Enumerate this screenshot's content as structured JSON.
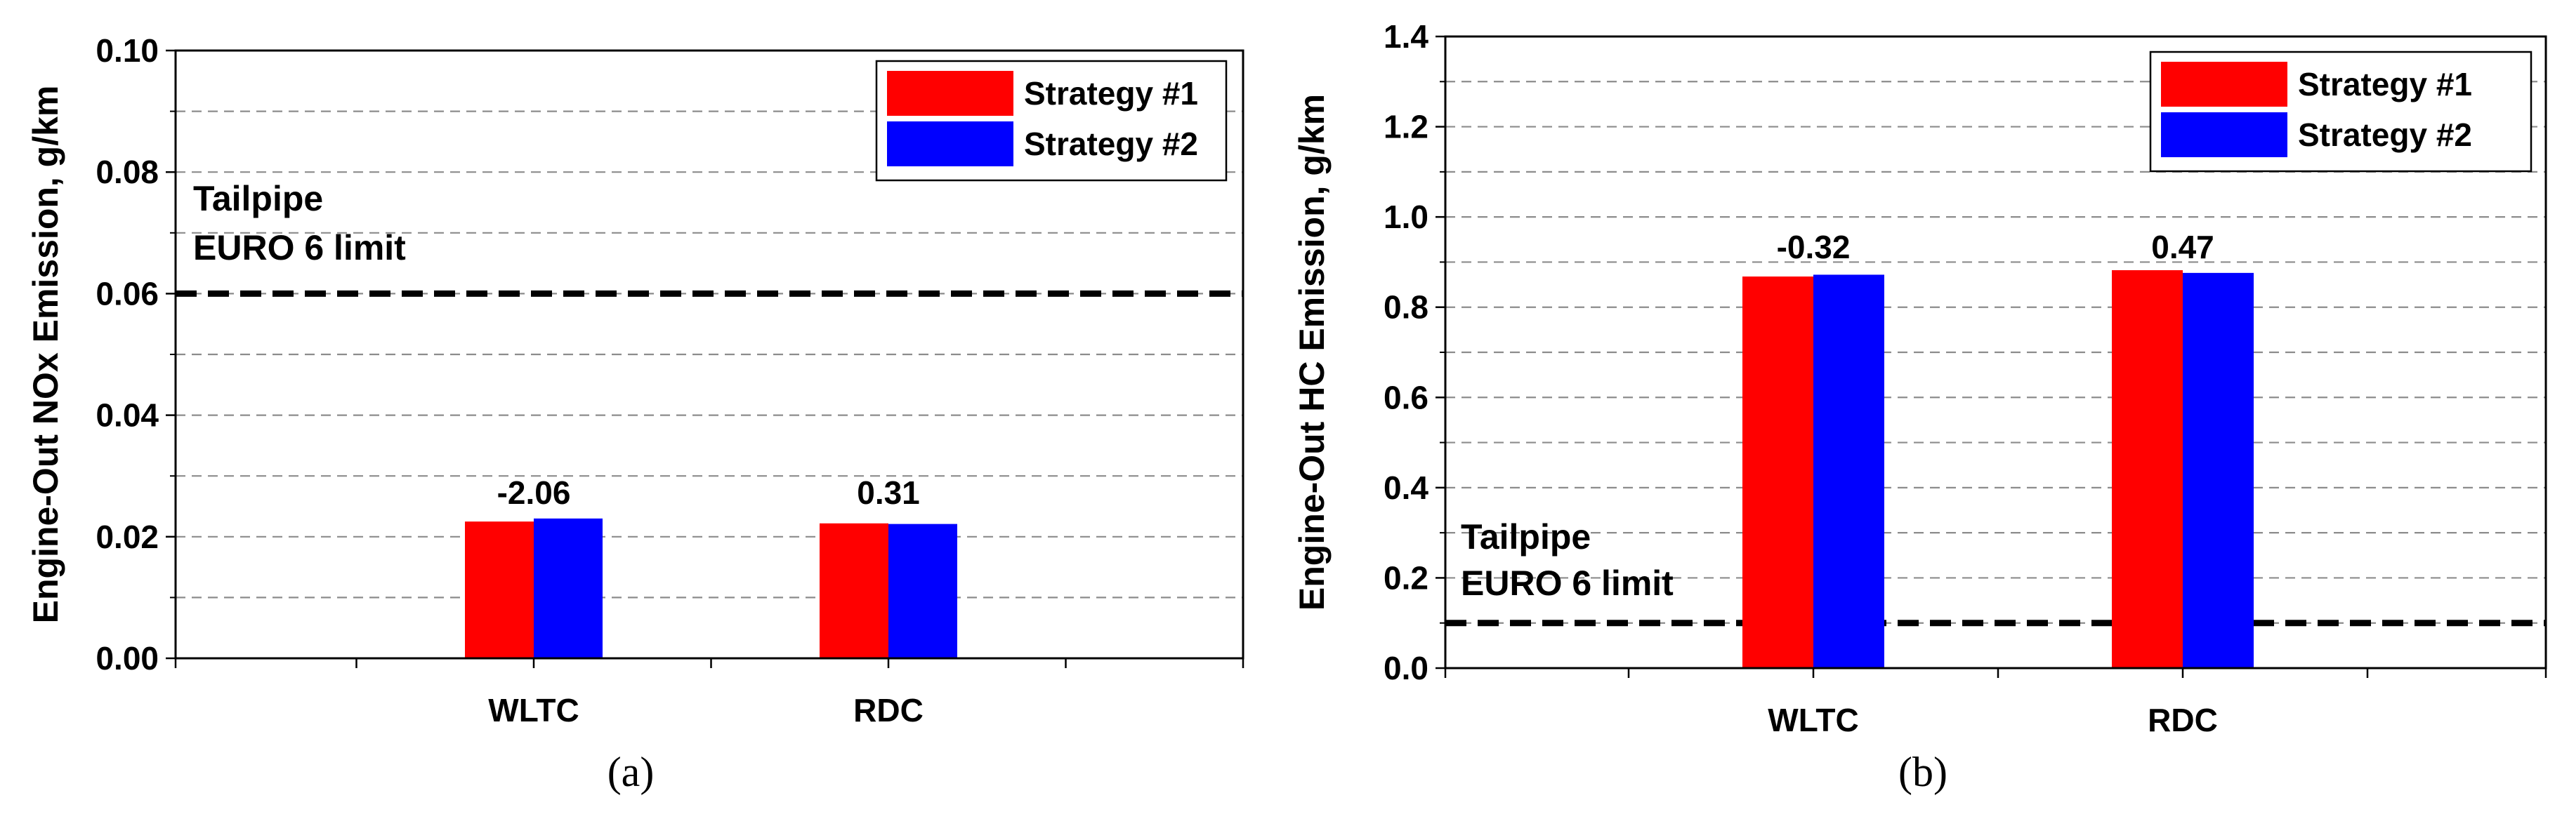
{
  "chart_data": [
    {
      "type": "bar",
      "panel_label": "(a)",
      "ylabel": "Engine-Out NOx Emission, g/km",
      "categories": [
        "WLTC",
        "RDC"
      ],
      "ylim": [
        0,
        0.1
      ],
      "yticks": [
        "0.00",
        "0.02",
        "0.04",
        "0.06",
        "0.08",
        "0.10"
      ],
      "minor_step": 0.01,
      "series": [
        {
          "name": "Strategy #1",
          "color": "#ff0000",
          "values": [
            0.0225,
            0.0222
          ]
        },
        {
          "name": "Strategy #2",
          "color": "#0000ff",
          "values": [
            0.023,
            0.0221
          ]
        }
      ],
      "data_labels": [
        "-2.06",
        "0.31"
      ],
      "reference_line": {
        "value": 0.06,
        "label_line1": "Tailpipe",
        "label_line2": "EURO 6 limit"
      },
      "legend": "top-right",
      "grid": "dashed horizontal"
    },
    {
      "type": "bar",
      "panel_label": "(b)",
      "ylabel": "Engine-Out HC Emission, g/km",
      "categories": [
        "WLTC",
        "RDC"
      ],
      "ylim": [
        0,
        1.4
      ],
      "yticks": [
        "0.0",
        "0.2",
        "0.4",
        "0.6",
        "0.8",
        "1.0",
        "1.2",
        "1.4"
      ],
      "minor_step": 0.1,
      "series": [
        {
          "name": "Strategy #1",
          "color": "#ff0000",
          "values": [
            0.868,
            0.882
          ]
        },
        {
          "name": "Strategy #2",
          "color": "#0000ff",
          "values": [
            0.872,
            0.876
          ]
        }
      ],
      "data_labels": [
        "-0.32",
        "0.47"
      ],
      "reference_line": {
        "value": 0.1,
        "label_line1": "Tailpipe",
        "label_line2": "EURO 6 limit"
      },
      "legend": "top-right",
      "grid": "dashed horizontal"
    }
  ]
}
